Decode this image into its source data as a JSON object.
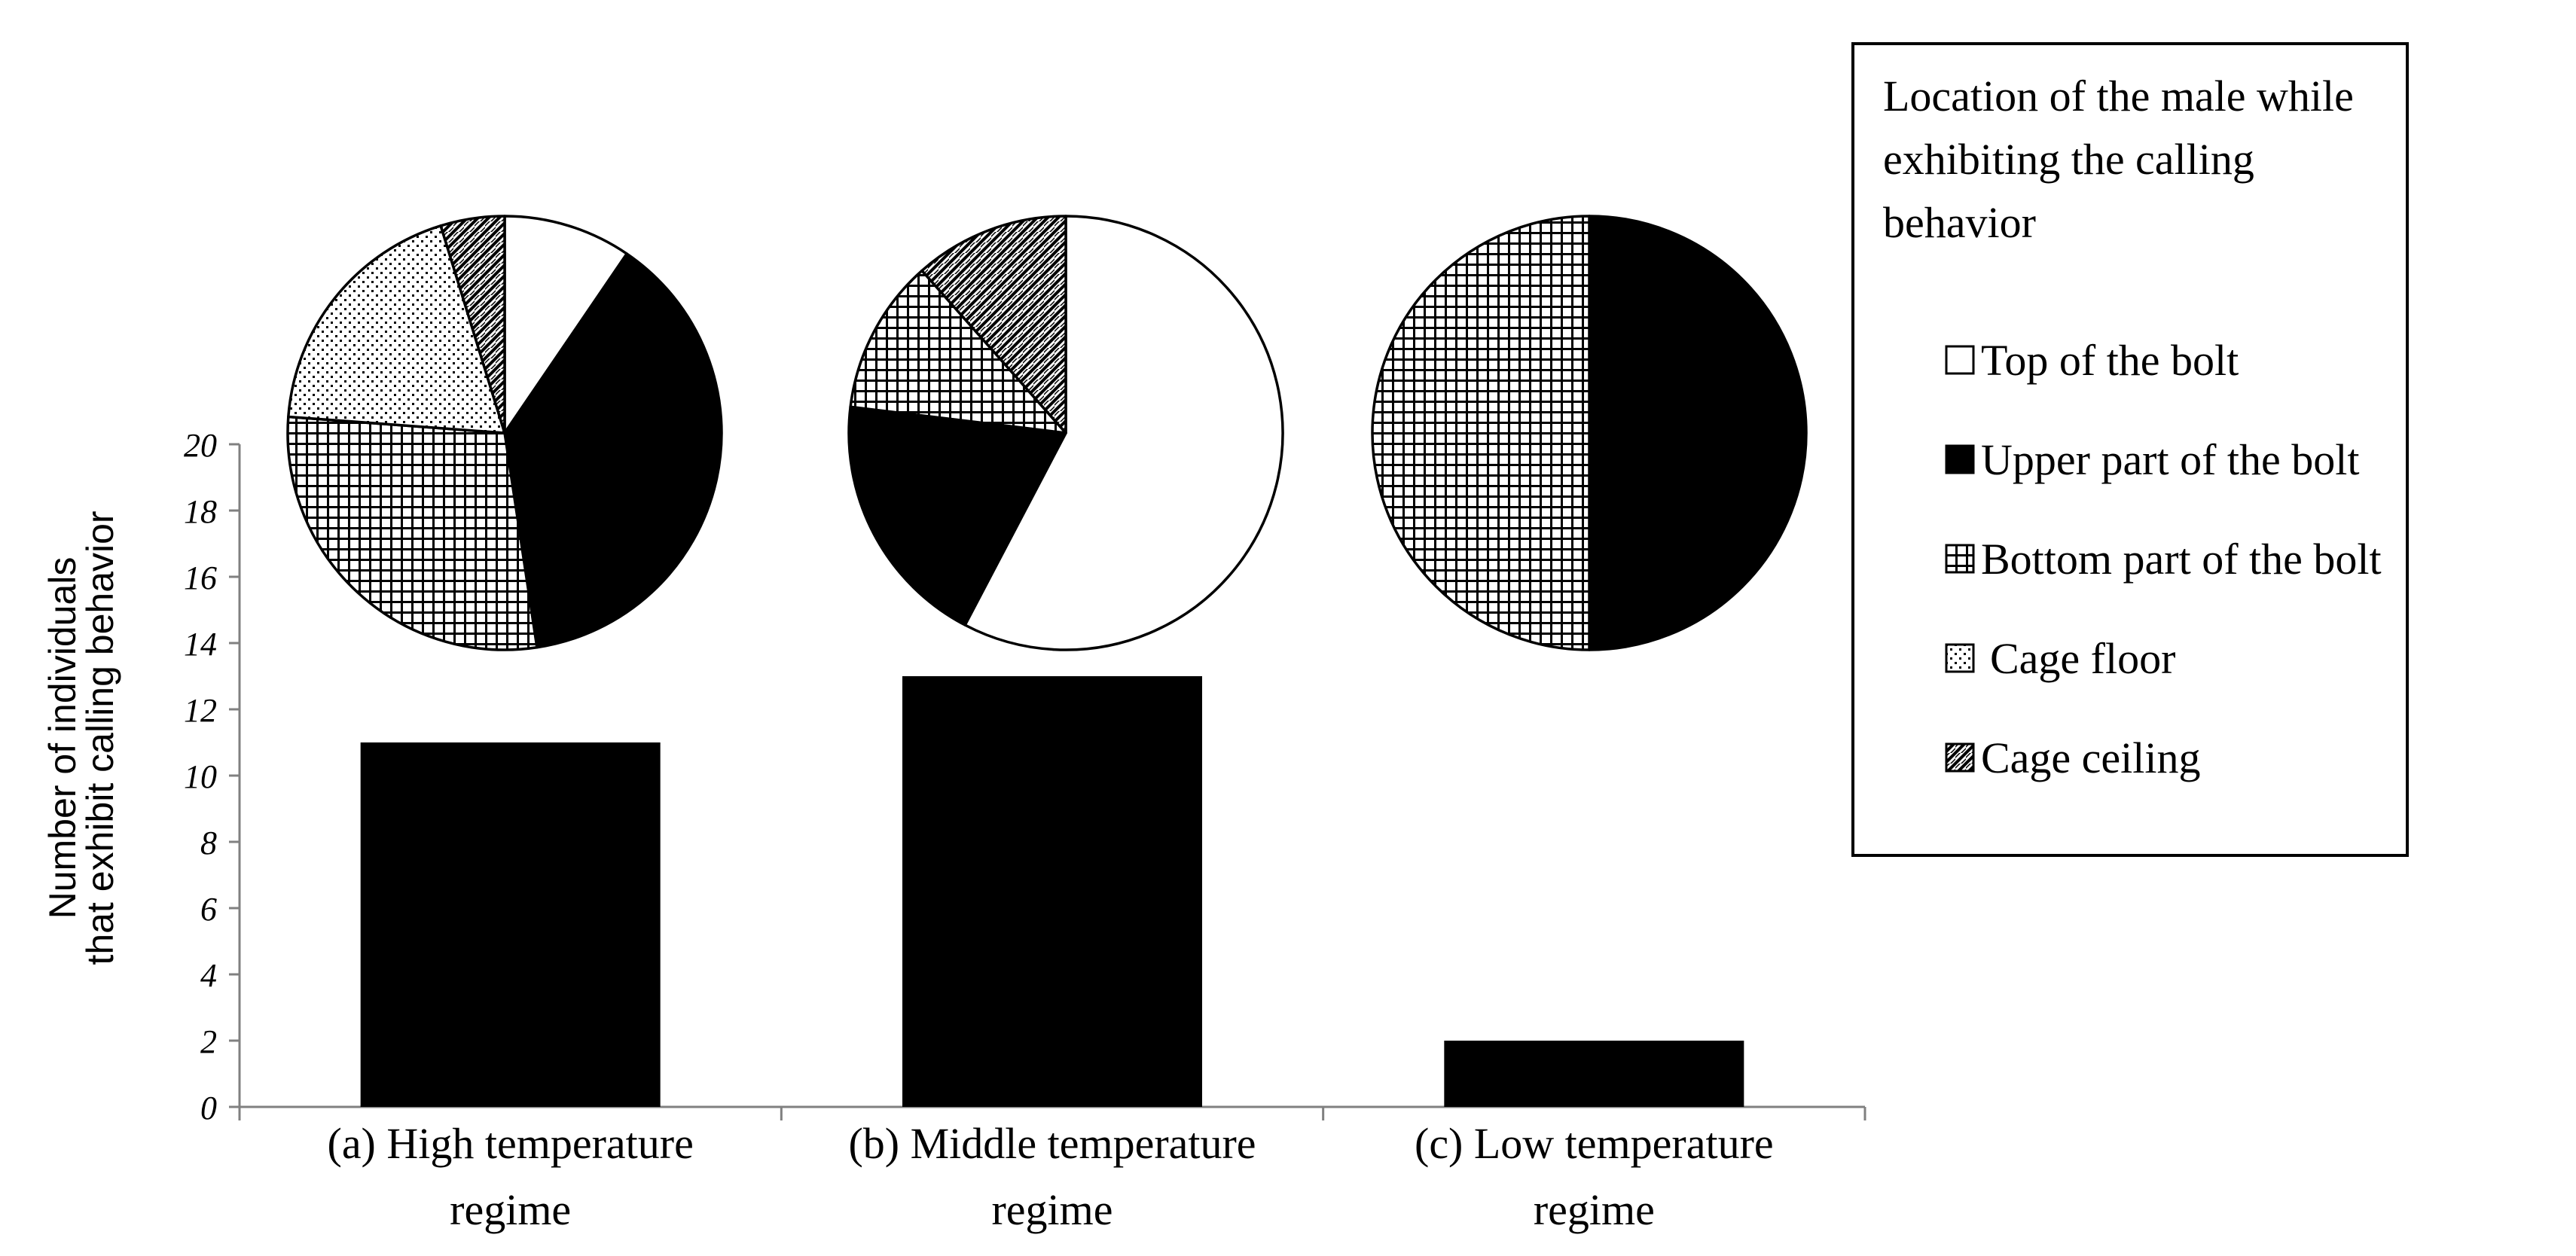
{
  "chart_data": [
    {
      "type": "bar",
      "ylabel": "Number of individuals\nthat exhibit calling behavior",
      "xlabel": "",
      "ylim": [
        0,
        20
      ],
      "yticks": [
        0,
        2,
        4,
        6,
        8,
        10,
        12,
        14,
        16,
        18,
        20
      ],
      "categories": [
        "(a) High temperature\nregime",
        "(b) Middle temperature\nregime",
        "(c) Low temperature\nregime"
      ],
      "values": [
        11,
        13,
        2
      ],
      "bar_color": "#000000"
    },
    {
      "type": "pie",
      "title": "",
      "category": "(a) High temperature regime",
      "slices": [
        {
          "label": "Top of the bolt",
          "value": 1
        },
        {
          "label": "Upper part of the bolt",
          "value": 4
        },
        {
          "label": "Bottom part of the bolt",
          "value": 3
        },
        {
          "label": "Cage floor",
          "value": 2
        },
        {
          "label": "Cage ceiling",
          "value": 0.5
        }
      ]
    },
    {
      "type": "pie",
      "title": "",
      "category": "(b) Middle temperature regime",
      "slices": [
        {
          "label": "Top of the bolt",
          "value": 7.5
        },
        {
          "label": "Upper part of the bolt",
          "value": 2.5
        },
        {
          "label": "Bottom part of the bolt",
          "value": 1.5
        },
        {
          "label": "Cage floor",
          "value": 0
        },
        {
          "label": "Cage ceiling",
          "value": 1.5
        }
      ]
    },
    {
      "type": "pie",
      "title": "",
      "category": "(c) Low temperature regime",
      "slices": [
        {
          "label": "Top of the bolt",
          "value": 0
        },
        {
          "label": "Upper part of the bolt",
          "value": 1
        },
        {
          "label": "Bottom part of the bolt",
          "value": 1
        },
        {
          "label": "Cage floor",
          "value": 0
        },
        {
          "label": "Cage ceiling",
          "value": 0
        }
      ]
    }
  ],
  "legend": {
    "title": "Location of the male while exhibiting the calling behavior",
    "items": [
      {
        "label": "Top of the bolt",
        "pattern": "solid-white"
      },
      {
        "label": "Upper part of the bolt",
        "pattern": "solid-black"
      },
      {
        "label": "Bottom part of the bolt",
        "pattern": "grid"
      },
      {
        "label": "Cage floor",
        "pattern": "dots"
      },
      {
        "label": "Cage ceiling",
        "pattern": "diagonal-hatch"
      }
    ]
  }
}
